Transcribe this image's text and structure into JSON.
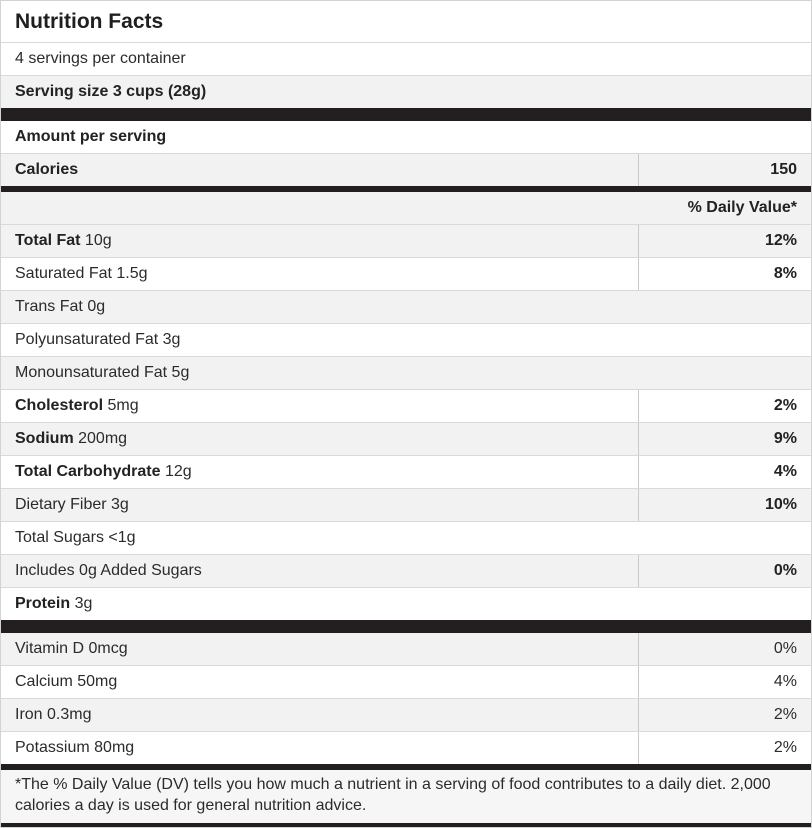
{
  "title": "Nutrition Facts",
  "serving_info": {
    "servings_per_container": "4 servings per container",
    "serving_size": "Serving size 3 cups (28g)"
  },
  "calories": {
    "section_label": "Amount per serving",
    "label": "Calories",
    "value": "150"
  },
  "daily_value_header": "% Daily Value*",
  "nutrients": [
    {
      "bold": "Total Fat",
      "text": " 10g",
      "dv": "12%"
    },
    {
      "bold": "",
      "text": "Saturated Fat 1.5g",
      "dv": "8%"
    },
    {
      "bold": "",
      "text": "Trans Fat 0g",
      "dv": ""
    },
    {
      "bold": "",
      "text": "Polyunsaturated Fat 3g",
      "dv": ""
    },
    {
      "bold": "",
      "text": "Monounsaturated Fat 5g",
      "dv": ""
    },
    {
      "bold": "Cholesterol",
      "text": " 5mg",
      "dv": "2%"
    },
    {
      "bold": "Sodium",
      "text": " 200mg",
      "dv": "9%"
    },
    {
      "bold": "Total Carbohydrate",
      "text": " 12g",
      "dv": "4%"
    },
    {
      "bold": "",
      "text": "Dietary Fiber 3g",
      "dv": "10%"
    },
    {
      "bold": "",
      "text": "Total Sugars <1g",
      "dv": ""
    },
    {
      "bold": "",
      "text": "Includes 0g Added Sugars",
      "dv": "0%"
    },
    {
      "bold": "Protein",
      "text": " 3g",
      "dv": ""
    }
  ],
  "vitamins": [
    {
      "bold": "",
      "text": "Vitamin D 0mcg",
      "dv": "0%"
    },
    {
      "bold": "",
      "text": "Calcium 50mg",
      "dv": "4%"
    },
    {
      "bold": "",
      "text": "Iron 0.3mg",
      "dv": "2%"
    },
    {
      "bold": "",
      "text": "Potassium 80mg",
      "dv": "2%"
    }
  ],
  "footnote": "*The % Daily Value (DV) tells you how much a nutrient in a serving of food contributes to a daily diet. 2,000 calories a day is used for general nutrition advice.",
  "colors": {
    "bar": "#231f20",
    "shaded_row": "#f2f2f2",
    "row_border": "#d9d9d9",
    "column_divider": "#c9c9c9",
    "text": "#2b2b2b",
    "footnote_bg": "#f6f6f6"
  }
}
